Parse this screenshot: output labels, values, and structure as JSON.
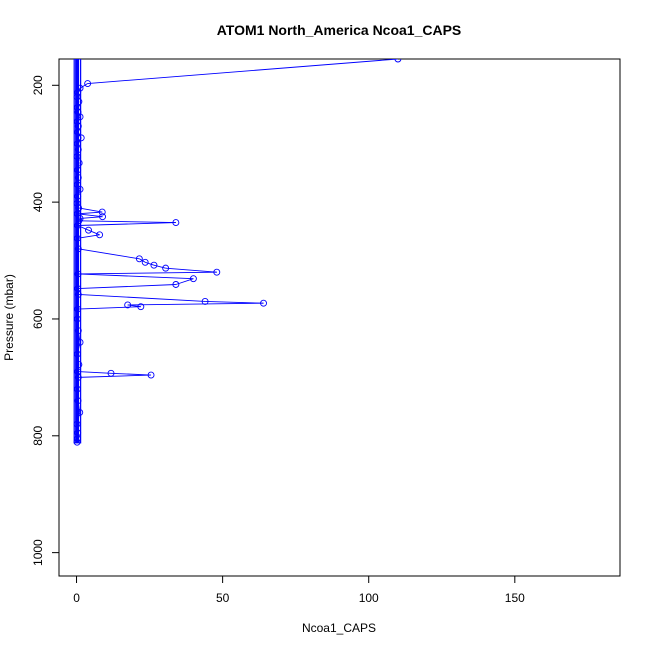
{
  "chart_data": {
    "type": "scatter",
    "title": "ATOM1 North_America Ncoa1_CAPS",
    "xlabel": "Ncoa1_CAPS",
    "ylabel": "Pressure (mbar)",
    "xlim": [
      -6,
      186
    ],
    "ylim": [
      1040,
      155
    ],
    "y_reversed": true,
    "x_ticks": [
      0,
      50,
      100,
      150
    ],
    "y_ticks": [
      200,
      400,
      600,
      800,
      1000
    ],
    "grid": false,
    "color": "#0000ff",
    "series": [
      {
        "style": "points-and-lines",
        "points": [
          [
            110,
            155
          ],
          [
            3.8,
            197
          ],
          [
            1.2,
            205
          ],
          [
            0.4,
            212
          ],
          [
            0.2,
            220
          ],
          [
            0.8,
            228
          ],
          [
            0.3,
            238
          ],
          [
            0.5,
            246
          ],
          [
            1.2,
            254
          ],
          [
            0.3,
            262
          ],
          [
            0.6,
            270
          ],
          [
            0.4,
            280
          ],
          [
            1.6,
            290
          ],
          [
            0.3,
            300
          ],
          [
            0.6,
            310
          ],
          [
            0.2,
            322
          ],
          [
            0.9,
            333
          ],
          [
            0.4,
            345
          ],
          [
            0.6,
            358
          ],
          [
            0.3,
            370
          ],
          [
            1.2,
            378
          ],
          [
            0.4,
            390
          ],
          [
            0.2,
            402
          ],
          [
            0.7,
            410
          ],
          [
            8.8,
            417
          ],
          [
            0.3,
            420
          ],
          [
            8.9,
            425
          ],
          [
            1.2,
            428
          ],
          [
            0.8,
            432
          ],
          [
            34,
            435
          ],
          [
            0.4,
            440
          ],
          [
            4.1,
            448
          ],
          [
            7.9,
            456
          ],
          [
            0.3,
            462
          ],
          [
            0.6,
            480
          ],
          [
            21.5,
            497
          ],
          [
            23.5,
            503
          ],
          [
            26.5,
            508
          ],
          [
            30.5,
            513
          ],
          [
            48,
            520
          ],
          [
            0.5,
            523
          ],
          [
            40,
            531
          ],
          [
            34,
            541
          ],
          [
            0.4,
            548
          ],
          [
            0.6,
            558
          ],
          [
            44,
            570
          ],
          [
            64,
            573
          ],
          [
            17.5,
            576
          ],
          [
            22,
            579
          ],
          [
            0.4,
            583
          ],
          [
            0.3,
            600
          ],
          [
            0.6,
            620
          ],
          [
            1.2,
            640
          ],
          [
            0.3,
            660
          ],
          [
            0.8,
            678
          ],
          [
            0.4,
            690
          ],
          [
            11.8,
            693
          ],
          [
            25.5,
            696
          ],
          [
            0.6,
            700
          ],
          [
            0.3,
            720
          ],
          [
            0.5,
            740
          ],
          [
            1.1,
            760
          ],
          [
            0.2,
            780
          ],
          [
            0.4,
            795
          ],
          [
            0.3,
            805
          ],
          [
            0.2,
            811
          ]
        ]
      }
    ]
  }
}
